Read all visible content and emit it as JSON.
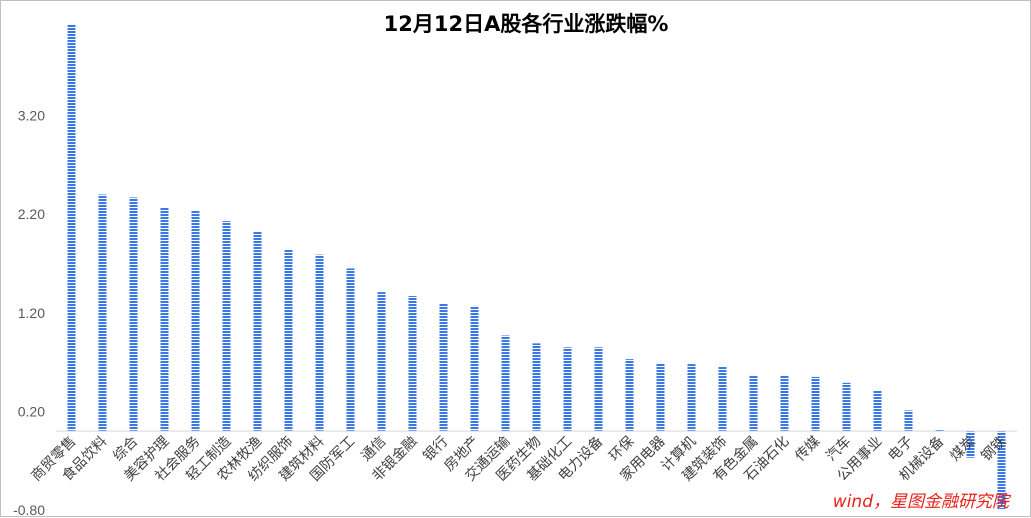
{
  "chart_data": {
    "type": "bar",
    "title": "12月12日A股各行业涨跌幅%",
    "xlabel": "",
    "ylabel": "",
    "ylim": [
      -0.8,
      4.2
    ],
    "yticks": [
      "-0.80",
      "0.20",
      "1.20",
      "2.20",
      "3.20"
    ],
    "grid": false,
    "legend": "none",
    "categories": [
      "商贸零售",
      "食品饮料",
      "综合",
      "美容护理",
      "社会服务",
      "轻工制造",
      "农林牧渔",
      "纺织服饰",
      "建筑材料",
      "国防军工",
      "通信",
      "非银金融",
      "银行",
      "房地产",
      "交通运输",
      "医药生物",
      "基础化工",
      "电力设备",
      "环保",
      "家用电器",
      "计算机",
      "建筑装饰",
      "有色金属",
      "石油石化",
      "传媒",
      "汽车",
      "公用事业",
      "电子",
      "机械设备",
      "煤炭",
      "钢铁"
    ],
    "values": [
      4.12,
      2.4,
      2.37,
      2.27,
      2.24,
      2.13,
      2.03,
      1.84,
      1.79,
      1.65,
      1.41,
      1.37,
      1.29,
      1.27,
      0.97,
      0.89,
      0.85,
      0.85,
      0.73,
      0.69,
      0.68,
      0.65,
      0.57,
      0.57,
      0.55,
      0.49,
      0.41,
      0.21,
      0.02,
      -0.27,
      -0.79
    ],
    "bar_color": "#3b78e7",
    "annotation": "wind，星图金融研究院"
  }
}
